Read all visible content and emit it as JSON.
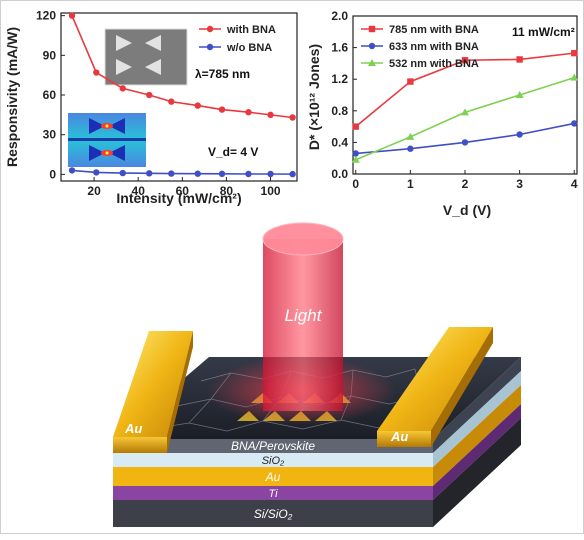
{
  "chart_data": [
    {
      "type": "line",
      "xlabel": "Intensity (mW/cm²)",
      "ylabel": "Responsivity (mA/W)",
      "xlim": [
        5,
        112
      ],
      "ylim": [
        -5,
        122
      ],
      "xticks": [
        20,
        40,
        60,
        80,
        100
      ],
      "yticks": [
        0,
        30,
        60,
        90,
        120
      ],
      "legend_position": "top-right",
      "annotations": [
        "λ=785 nm",
        "V_d= 4 V"
      ],
      "series": [
        {
          "name": "with BNA",
          "color": "#e8393e",
          "marker": "circle",
          "x": [
            10,
            21,
            33,
            45,
            55,
            67,
            78,
            90,
            100,
            110
          ],
          "y": [
            120,
            77,
            65,
            60,
            55,
            52,
            49,
            47,
            45,
            43
          ]
        },
        {
          "name": "w/o  BNA",
          "color": "#3f4fc6",
          "marker": "circle",
          "x": [
            10,
            21,
            33,
            45,
            55,
            67,
            78,
            90,
            100,
            110
          ],
          "y": [
            3,
            1.5,
            1,
            0.8,
            0.6,
            0.5,
            0.4,
            0.3,
            0.3,
            0.2
          ]
        }
      ]
    },
    {
      "type": "line",
      "xlabel": "V_d (V)",
      "ylabel": "D* (×10¹² Jones)",
      "xlim": [
        -0.05,
        4.05
      ],
      "ylim": [
        0,
        2.0
      ],
      "xticks": [
        0,
        1,
        2,
        3,
        4
      ],
      "yticks": [
        0.0,
        0.4,
        0.8,
        1.2,
        1.6,
        2.0
      ],
      "legend_position": "top-left",
      "annotations": [
        "11 mW/cm²"
      ],
      "series": [
        {
          "name": "785 nm with BNA",
          "color": "#e8393e",
          "marker": "square",
          "x": [
            0,
            1,
            2,
            3,
            4
          ],
          "y": [
            0.6,
            1.17,
            1.44,
            1.45,
            1.53
          ]
        },
        {
          "name": "633 nm with BNA",
          "color": "#3f4fc6",
          "marker": "circle",
          "x": [
            0,
            1,
            2,
            3,
            4
          ],
          "y": [
            0.26,
            0.32,
            0.4,
            0.5,
            0.64
          ]
        },
        {
          "name": "532 nm with BNA",
          "color": "#7fd152",
          "marker": "triangle",
          "x": [
            0,
            1,
            2,
            3,
            4
          ],
          "y": [
            0.18,
            0.47,
            0.78,
            1.0,
            1.22
          ]
        }
      ]
    }
  ],
  "device": {
    "light_label": "Light",
    "electrode_left": "Au",
    "electrode_right": "Au",
    "layers": [
      "BNA/Perovskite",
      "SiO₂",
      "Au",
      "Ti",
      "Si/SiO₂"
    ]
  }
}
